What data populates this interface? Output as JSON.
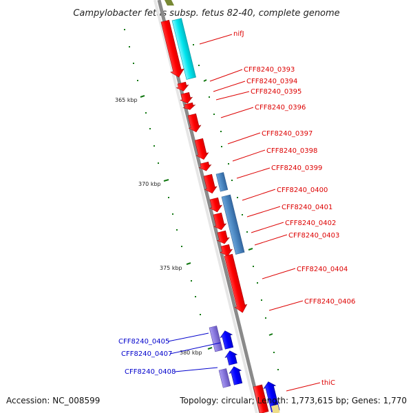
{
  "title": "Campylobacter fetus subsp. fetus 82-40, complete genome",
  "footer": {
    "accession": "Accession: NC_008599",
    "topology": "Topology: circular; Length: 1,773,615 bp; Genes: 1,770"
  },
  "scale_labels": [
    "365 kbp",
    "370 kbp",
    "375 kbp",
    "380 kbp"
  ],
  "colors": {
    "forward_gene": "#ff0000",
    "reverse_gene": "#0000ff",
    "cyan_feature": "#00e5ee",
    "steel_feature": "#4a86c0",
    "lavender_feature": "#8877dd",
    "label_red": "#dd0000",
    "label_blue": "#0000cc",
    "tick_green": "#117711",
    "backbone": "#888888"
  },
  "labels": {
    "nifj": "nifJ",
    "cff0393": "CFF8240_0393",
    "cff0394": "CFF8240_0394",
    "cff0395": "CFF8240_0395",
    "cff0396": "CFF8240_0396",
    "cff0397": "CFF8240_0397",
    "cff0398": "CFF8240_0398",
    "cff0399": "CFF8240_0399",
    "cff0400": "CFF8240_0400",
    "cff0401": "CFF8240_0401",
    "cff0402": "CFF8240_0402",
    "cff0403": "CFF8240_0403",
    "cff0404": "CFF8240_0404",
    "cff0406": "CFF8240_0406",
    "cff0405": "CFF8240_0405",
    "cff0407": "CFF8240_0407",
    "cff0408": "CFF8240_0408",
    "thic": "thiC"
  }
}
